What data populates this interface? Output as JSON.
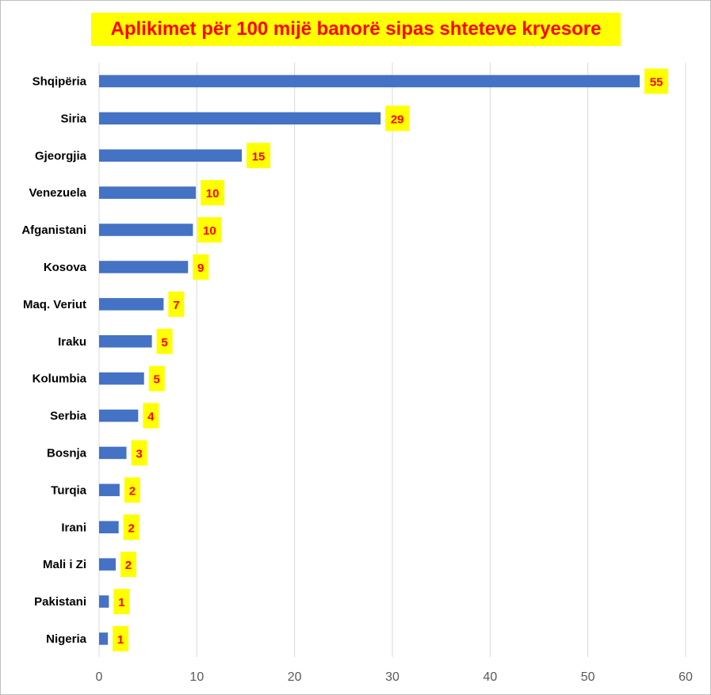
{
  "chart_data": {
    "type": "bar",
    "orientation": "horizontal",
    "title": "Aplikimet për 100 mijë banorë sipas shteteve kryesore",
    "categories": [
      "Shqipëria",
      "Siria",
      "Gjeorgjia",
      "Venezuela",
      "Afganistani",
      "Kosova",
      "Maq. Veriut",
      "Iraku",
      "Kolumbia",
      "Serbia",
      "Bosnja",
      "Turqia",
      "Irani",
      "Mali i Zi",
      "Pakistani",
      "Nigeria"
    ],
    "values": [
      55.3,
      28.8,
      14.6,
      9.9,
      9.6,
      9.1,
      6.6,
      5.4,
      4.6,
      4.0,
      2.8,
      2.1,
      2.0,
      1.7,
      1.0,
      0.9
    ],
    "data_labels": [
      "55",
      "29",
      "15",
      "10",
      "10",
      "9",
      "7",
      "5",
      "5",
      "4",
      "3",
      "2",
      "2",
      "2",
      "1",
      "1"
    ],
    "xlim": [
      0,
      60
    ],
    "xticks": [
      "0",
      "10",
      "20",
      "30",
      "40",
      "50",
      "60"
    ],
    "grid": "vertical",
    "legend": "none",
    "colors": {
      "bar": "#4472c4",
      "title_bg": "#ffff00",
      "title_text": "#ff0000",
      "label_bg": "#ffff00",
      "label_text": "#ff0000",
      "grid": "#d9d9d9"
    }
  }
}
